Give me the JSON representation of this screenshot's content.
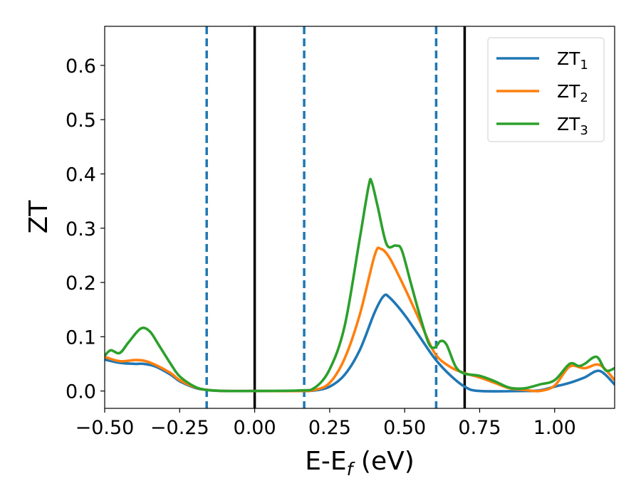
{
  "chart_data": {
    "type": "line",
    "title": "",
    "xlabel": "E-E",
    "xlabel_sub": "f",
    "xlabel_unit": " (eV)",
    "ylabel": "ZT",
    "xlim": [
      -0.5,
      1.2
    ],
    "ylim": [
      -0.032,
      0.672
    ],
    "x_ticks": [
      -0.5,
      -0.25,
      0.0,
      0.25,
      0.5,
      0.75,
      1.0
    ],
    "x_tick_labels": [
      "−0.50",
      "−0.25",
      "0.00",
      "0.25",
      "0.50",
      "0.75",
      "1.00"
    ],
    "y_ticks": [
      0.0,
      0.1,
      0.2,
      0.3,
      0.4,
      0.5,
      0.6
    ],
    "y_tick_labels": [
      "0.0",
      "0.1",
      "0.2",
      "0.3",
      "0.4",
      "0.5",
      "0.6"
    ],
    "grid": false,
    "legend_position": "top-right",
    "vlines_solid": [
      0.0,
      0.7
    ],
    "vlines_dashed": [
      -0.16,
      0.165,
      0.605
    ],
    "vline_solid_color": "#000000",
    "vline_dashed_color": "#1f77b4",
    "series": [
      {
        "name": "ZT",
        "name_sub": "1",
        "color": "#1f77b4",
        "points": [
          [
            -0.5,
            0.058
          ],
          [
            -0.45,
            0.052
          ],
          [
            -0.4,
            0.05
          ],
          [
            -0.37,
            0.05
          ],
          [
            -0.33,
            0.045
          ],
          [
            -0.28,
            0.03
          ],
          [
            -0.25,
            0.018
          ],
          [
            -0.2,
            0.006
          ],
          [
            -0.16,
            0.002
          ],
          [
            -0.1,
            0.0
          ],
          [
            0.0,
            0.0
          ],
          [
            0.15,
            0.0
          ],
          [
            0.2,
            0.001
          ],
          [
            0.25,
            0.008
          ],
          [
            0.3,
            0.03
          ],
          [
            0.35,
            0.075
          ],
          [
            0.4,
            0.145
          ],
          [
            0.43,
            0.175
          ],
          [
            0.45,
            0.172
          ],
          [
            0.5,
            0.14
          ],
          [
            0.55,
            0.1
          ],
          [
            0.6,
            0.06
          ],
          [
            0.65,
            0.03
          ],
          [
            0.7,
            0.008
          ],
          [
            0.75,
            0.0
          ],
          [
            0.9,
            0.0
          ],
          [
            0.95,
            0.001
          ],
          [
            1.0,
            0.008
          ],
          [
            1.05,
            0.015
          ],
          [
            1.1,
            0.025
          ],
          [
            1.15,
            0.037
          ],
          [
            1.2,
            0.012
          ]
        ]
      },
      {
        "name": "ZT",
        "name_sub": "2",
        "color": "#ff7f0e",
        "points": [
          [
            -0.5,
            0.063
          ],
          [
            -0.45,
            0.055
          ],
          [
            -0.4,
            0.057
          ],
          [
            -0.37,
            0.056
          ],
          [
            -0.33,
            0.048
          ],
          [
            -0.28,
            0.033
          ],
          [
            -0.25,
            0.02
          ],
          [
            -0.2,
            0.007
          ],
          [
            -0.16,
            0.002
          ],
          [
            -0.1,
            0.0
          ],
          [
            0.0,
            0.0
          ],
          [
            0.15,
            0.0
          ],
          [
            0.2,
            0.002
          ],
          [
            0.25,
            0.015
          ],
          [
            0.3,
            0.06
          ],
          [
            0.35,
            0.14
          ],
          [
            0.4,
            0.25
          ],
          [
            0.42,
            0.262
          ],
          [
            0.45,
            0.245
          ],
          [
            0.5,
            0.19
          ],
          [
            0.55,
            0.13
          ],
          [
            0.6,
            0.07
          ],
          [
            0.65,
            0.045
          ],
          [
            0.7,
            0.033
          ],
          [
            0.75,
            0.025
          ],
          [
            0.8,
            0.015
          ],
          [
            0.85,
            0.005
          ],
          [
            0.9,
            0.002
          ],
          [
            0.95,
            0.0
          ],
          [
            1.0,
            0.01
          ],
          [
            1.05,
            0.045
          ],
          [
            1.1,
            0.042
          ],
          [
            1.15,
            0.048
          ],
          [
            1.2,
            0.02
          ]
        ]
      },
      {
        "name": "ZT",
        "name_sub": "3",
        "color": "#2ca02c",
        "points": [
          [
            -0.5,
            0.065
          ],
          [
            -0.48,
            0.075
          ],
          [
            -0.45,
            0.07
          ],
          [
            -0.42,
            0.09
          ],
          [
            -0.38,
            0.115
          ],
          [
            -0.35,
            0.11
          ],
          [
            -0.32,
            0.085
          ],
          [
            -0.28,
            0.05
          ],
          [
            -0.25,
            0.027
          ],
          [
            -0.2,
            0.008
          ],
          [
            -0.16,
            0.002
          ],
          [
            -0.1,
            0.0
          ],
          [
            0.0,
            0.0
          ],
          [
            0.15,
            0.001
          ],
          [
            0.2,
            0.006
          ],
          [
            0.25,
            0.04
          ],
          [
            0.3,
            0.12
          ],
          [
            0.35,
            0.28
          ],
          [
            0.38,
            0.378
          ],
          [
            0.39,
            0.385
          ],
          [
            0.41,
            0.34
          ],
          [
            0.44,
            0.27
          ],
          [
            0.47,
            0.268
          ],
          [
            0.49,
            0.26
          ],
          [
            0.52,
            0.2
          ],
          [
            0.55,
            0.14
          ],
          [
            0.58,
            0.088
          ],
          [
            0.6,
            0.08
          ],
          [
            0.62,
            0.092
          ],
          [
            0.64,
            0.085
          ],
          [
            0.67,
            0.045
          ],
          [
            0.7,
            0.032
          ],
          [
            0.75,
            0.028
          ],
          [
            0.8,
            0.018
          ],
          [
            0.85,
            0.006
          ],
          [
            0.9,
            0.005
          ],
          [
            0.95,
            0.012
          ],
          [
            1.0,
            0.02
          ],
          [
            1.05,
            0.05
          ],
          [
            1.08,
            0.046
          ],
          [
            1.1,
            0.05
          ],
          [
            1.14,
            0.063
          ],
          [
            1.17,
            0.038
          ],
          [
            1.2,
            0.042
          ]
        ]
      }
    ]
  }
}
